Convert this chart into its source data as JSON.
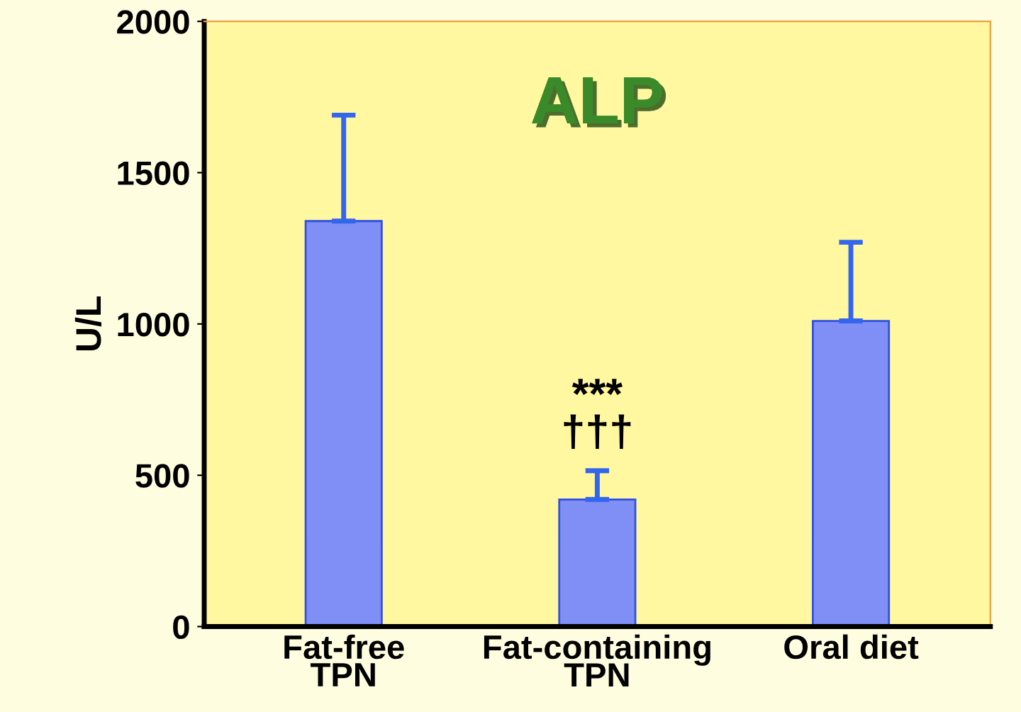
{
  "chart_data": {
    "type": "bar",
    "title": "ALP",
    "ylabel": "U/L",
    "categories": [
      "Fat-free\nTPN",
      "Fat-containing\nTPN",
      "Oral diet"
    ],
    "series": [
      {
        "color": "#7f8ff5",
        "values": [
          1340,
          420,
          1010
        ],
        "errors": [
          [
            1340,
            1690
          ],
          [
            420,
            515
          ],
          [
            1010,
            1270
          ]
        ]
      }
    ],
    "ylim": [
      0,
      2000
    ],
    "yticks": [
      0,
      500,
      1000,
      1500,
      2000
    ],
    "grid": false,
    "legend": false,
    "annotations": [
      {
        "text": "***\n†††",
        "x": "Fat-containing\nTPN",
        "y": 515
      }
    ]
  }
}
